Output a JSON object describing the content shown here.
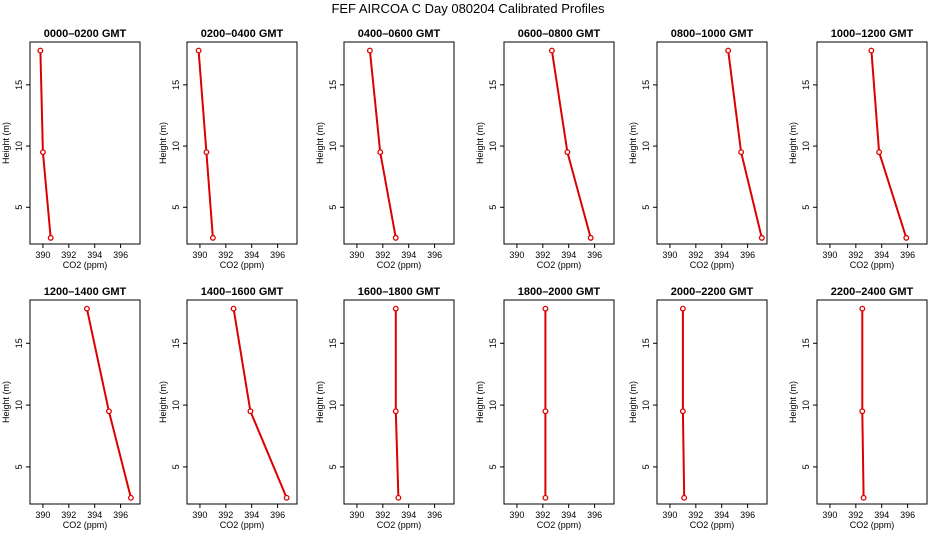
{
  "title": "FEF AIRCOA C  Day 080204  Calibrated Profiles",
  "chart_data": [
    {
      "type": "line",
      "title": "0000–0200 GMT",
      "xlabel": "CO2 (ppm)",
      "ylabel": "Height (m)",
      "xlim": [
        389,
        397.5
      ],
      "ylim": [
        2,
        18.5
      ],
      "xticks": [
        "390",
        "392",
        "394",
        "396"
      ],
      "yticks": [
        "5",
        "10",
        "15"
      ],
      "color": "#dd0000",
      "series": [
        {
          "x": [
            390.6,
            390.0,
            389.8
          ],
          "y": [
            2.5,
            9.5,
            17.8
          ]
        }
      ]
    },
    {
      "type": "line",
      "title": "0200–0400 GMT",
      "xlabel": "CO2 (ppm)",
      "ylabel": "Height (m)",
      "xlim": [
        389,
        397.5
      ],
      "ylim": [
        2,
        18.5
      ],
      "xticks": [
        "390",
        "392",
        "394",
        "396"
      ],
      "yticks": [
        "5",
        "10",
        "15"
      ],
      "color": "#dd0000",
      "series": [
        {
          "x": [
            391.0,
            390.5,
            389.9
          ],
          "y": [
            2.5,
            9.5,
            17.8
          ]
        }
      ]
    },
    {
      "type": "line",
      "title": "0400–0600 GMT",
      "xlabel": "CO2 (ppm)",
      "ylabel": "Height (m)",
      "xlim": [
        389,
        397.5
      ],
      "ylim": [
        2,
        18.5
      ],
      "xticks": [
        "390",
        "392",
        "394",
        "396"
      ],
      "yticks": [
        "5",
        "10",
        "15"
      ],
      "color": "#dd0000",
      "series": [
        {
          "x": [
            393.0,
            391.8,
            391.0
          ],
          "y": [
            2.5,
            9.5,
            17.8
          ]
        }
      ]
    },
    {
      "type": "line",
      "title": "0600–0800 GMT",
      "xlabel": "CO2 (ppm)",
      "ylabel": "Height (m)",
      "xlim": [
        389,
        397.5
      ],
      "ylim": [
        2,
        18.5
      ],
      "xticks": [
        "390",
        "392",
        "394",
        "396"
      ],
      "yticks": [
        "5",
        "10",
        "15"
      ],
      "color": "#dd0000",
      "series": [
        {
          "x": [
            395.7,
            393.9,
            392.7
          ],
          "y": [
            2.5,
            9.5,
            17.8
          ]
        }
      ]
    },
    {
      "type": "line",
      "title": "0800–1000 GMT",
      "xlabel": "CO2 (ppm)",
      "ylabel": "Height (m)",
      "xlim": [
        389,
        397.5
      ],
      "ylim": [
        2,
        18.5
      ],
      "xticks": [
        "390",
        "392",
        "394",
        "396"
      ],
      "yticks": [
        "5",
        "10",
        "15"
      ],
      "color": "#dd0000",
      "series": [
        {
          "x": [
            397.1,
            395.5,
            394.5
          ],
          "y": [
            2.5,
            9.5,
            17.8
          ]
        }
      ]
    },
    {
      "type": "line",
      "title": "1000–1200 GMT",
      "xlabel": "CO2 (ppm)",
      "ylabel": "Height (m)",
      "xlim": [
        389,
        397.5
      ],
      "ylim": [
        2,
        18.5
      ],
      "xticks": [
        "390",
        "392",
        "394",
        "396"
      ],
      "yticks": [
        "5",
        "10",
        "15"
      ],
      "color": "#dd0000",
      "series": [
        {
          "x": [
            395.9,
            393.8,
            393.2
          ],
          "y": [
            2.5,
            9.5,
            17.8
          ]
        }
      ]
    },
    {
      "type": "line",
      "title": "1200–1400 GMT",
      "xlabel": "CO2 (ppm)",
      "ylabel": "Height (m)",
      "xlim": [
        389,
        397.5
      ],
      "ylim": [
        2,
        18.5
      ],
      "xticks": [
        "390",
        "392",
        "394",
        "396"
      ],
      "yticks": [
        "5",
        "10",
        "15"
      ],
      "color": "#dd0000",
      "series": [
        {
          "x": [
            396.8,
            395.1,
            393.4
          ],
          "y": [
            2.5,
            9.5,
            17.8
          ]
        }
      ]
    },
    {
      "type": "line",
      "title": "1400–1600 GMT",
      "xlabel": "CO2 (ppm)",
      "ylabel": "Height (m)",
      "xlim": [
        389,
        397.5
      ],
      "ylim": [
        2,
        18.5
      ],
      "xticks": [
        "390",
        "392",
        "394",
        "396"
      ],
      "yticks": [
        "5",
        "10",
        "15"
      ],
      "color": "#dd0000",
      "series": [
        {
          "x": [
            396.7,
            393.9,
            392.6
          ],
          "y": [
            2.5,
            9.5,
            17.8
          ]
        }
      ]
    },
    {
      "type": "line",
      "title": "1600–1800 GMT",
      "xlabel": "CO2 (ppm)",
      "ylabel": "Height (m)",
      "xlim": [
        389,
        397.5
      ],
      "ylim": [
        2,
        18.5
      ],
      "xticks": [
        "390",
        "392",
        "394",
        "396"
      ],
      "yticks": [
        "5",
        "10",
        "15"
      ],
      "color": "#dd0000",
      "series": [
        {
          "x": [
            393.2,
            393.0,
            393.0
          ],
          "y": [
            2.5,
            9.5,
            17.8
          ]
        }
      ]
    },
    {
      "type": "line",
      "title": "1800–2000 GMT",
      "xlabel": "CO2 (ppm)",
      "ylabel": "Height (m)",
      "xlim": [
        389,
        397.5
      ],
      "ylim": [
        2,
        18.5
      ],
      "xticks": [
        "390",
        "392",
        "394",
        "396"
      ],
      "yticks": [
        "5",
        "10",
        "15"
      ],
      "color": "#dd0000",
      "series": [
        {
          "x": [
            392.2,
            392.2,
            392.2
          ],
          "y": [
            2.5,
            9.5,
            17.8
          ]
        }
      ]
    },
    {
      "type": "line",
      "title": "2000–2200 GMT",
      "xlabel": "CO2 (ppm)",
      "ylabel": "Height (m)",
      "xlim": [
        389,
        397.5
      ],
      "ylim": [
        2,
        18.5
      ],
      "xticks": [
        "390",
        "392",
        "394",
        "396"
      ],
      "yticks": [
        "5",
        "10",
        "15"
      ],
      "color": "#dd0000",
      "series": [
        {
          "x": [
            391.1,
            391.0,
            391.0
          ],
          "y": [
            2.5,
            9.5,
            17.8
          ]
        }
      ]
    },
    {
      "type": "line",
      "title": "2200–2400 GMT",
      "xlabel": "CO2 (ppm)",
      "ylabel": "Height (m)",
      "xlim": [
        389,
        397.5
      ],
      "ylim": [
        2,
        18.5
      ],
      "xticks": [
        "390",
        "392",
        "394",
        "396"
      ],
      "yticks": [
        "5",
        "10",
        "15"
      ],
      "color": "#dd0000",
      "series": [
        {
          "x": [
            392.6,
            392.5,
            392.5
          ],
          "y": [
            2.5,
            9.5,
            17.8
          ]
        }
      ]
    }
  ]
}
